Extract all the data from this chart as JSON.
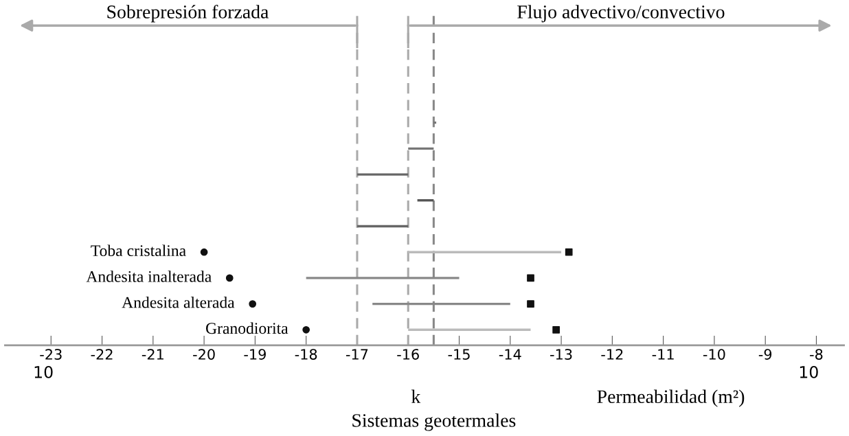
{
  "chart_data": {
    "type": "scatter",
    "orientation": "horizontal",
    "xlabel": "Permeabilidad (m²)",
    "annotations": [
      "Sobrepresión forzada",
      "Flujo advectivo/convectivo",
      "10",
      "10",
      "Sistemas geotermales"
    ],
    "categories": [
      null,
      null,
      null,
      null,
      null,
      "Toba cristalina",
      "Andesita inalterada",
      "Andesita alterada",
      "Granodiorita"
    ],
    "series": [
      {
        "marker": "circle",
        "color": "#111111",
        "values": [
          null,
          null,
          null,
          null,
          null,
          -20,
          -19.5,
          -19.05,
          -18
        ]
      },
      {
        "marker": "square",
        "color": "#111111",
        "values": [
          null,
          null,
          null,
          null,
          null,
          -12.85,
          -13.6,
          -13.6,
          -13.1
        ]
      },
      {
        "type": "bar",
        "colors": [
          "#777777",
          "#777777",
          "#666666",
          "#555555",
          "#666666",
          "#bbbbbb",
          "#888888",
          "#888888",
          "#bbbbbb"
        ],
        "base": [
          -15.5,
          -16,
          -17,
          -15.82,
          -17,
          -16,
          -18,
          -16.7,
          -16
        ],
        "values": [
          0.05,
          0.5,
          1,
          0.32,
          1,
          3,
          3,
          2.7,
          2.4
        ]
      }
    ],
    "xlim": [
      -23.9,
      -7.46
    ],
    "xticks": [
      -23,
      -22,
      -21,
      -20,
      -19,
      -18,
      -17,
      -16,
      -15,
      -14,
      -13,
      -12,
      -11,
      -10,
      -9,
      -8
    ],
    "tick_labels": "x",
    "ref_lines": [
      {
        "axis": "x",
        "value": -17,
        "color": "#aaaaaa",
        "line_style": "dashed"
      },
      {
        "axis": "x",
        "value": -16,
        "color": "#aaaaaa",
        "line_style": "dashed"
      },
      {
        "axis": "x",
        "value": -15.5,
        "color": "#888888",
        "line_style": "dashed",
        "label": "k"
      }
    ],
    "grid": false,
    "legend": false
  }
}
